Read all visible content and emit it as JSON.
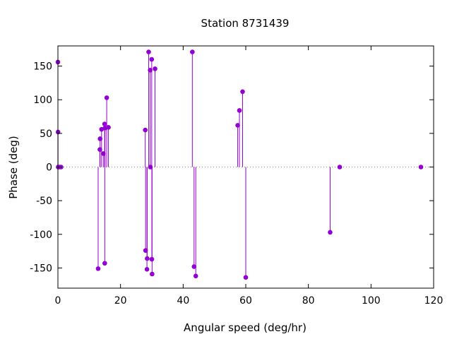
{
  "chart_data": {
    "type": "scatter",
    "style": "impulses-with-points",
    "title": "Station 8731439",
    "xlabel": "Angular speed (deg/hr)",
    "ylabel": "Phase (deg)",
    "xlim": [
      0,
      120
    ],
    "ylim": [
      -180,
      180
    ],
    "xticks": [
      0,
      20,
      40,
      60,
      80,
      100,
      120
    ],
    "yticks": [
      -150,
      -100,
      -50,
      0,
      50,
      100,
      150
    ],
    "grid": false,
    "zero_line": "dotted",
    "color": "#9400d3",
    "points": [
      {
        "x": 0.0,
        "y": 156
      },
      {
        "x": 0.04,
        "y": 52
      },
      {
        "x": 0.08,
        "y": 0
      },
      {
        "x": 0.54,
        "y": 0
      },
      {
        "x": 1.0,
        "y": 0
      },
      {
        "x": 12.85,
        "y": -151
      },
      {
        "x": 13.4,
        "y": 26
      },
      {
        "x": 13.47,
        "y": 42
      },
      {
        "x": 13.94,
        "y": 56
      },
      {
        "x": 14.5,
        "y": 20
      },
      {
        "x": 14.92,
        "y": 64
      },
      {
        "x": 14.96,
        "y": -143
      },
      {
        "x": 15.04,
        "y": 58
      },
      {
        "x": 15.59,
        "y": 103
      },
      {
        "x": 16.14,
        "y": 59
      },
      {
        "x": 27.9,
        "y": 55
      },
      {
        "x": 28.0,
        "y": -124
      },
      {
        "x": 28.44,
        "y": -152
      },
      {
        "x": 28.51,
        "y": -136
      },
      {
        "x": 28.98,
        "y": 171
      },
      {
        "x": 29.46,
        "y": 144
      },
      {
        "x": 29.53,
        "y": 0
      },
      {
        "x": 29.96,
        "y": 160
      },
      {
        "x": 30.0,
        "y": -137
      },
      {
        "x": 30.08,
        "y": -159
      },
      {
        "x": 31.02,
        "y": 146
      },
      {
        "x": 42.93,
        "y": 171
      },
      {
        "x": 43.48,
        "y": -148
      },
      {
        "x": 44.03,
        "y": -162
      },
      {
        "x": 57.42,
        "y": 62
      },
      {
        "x": 57.97,
        "y": 84
      },
      {
        "x": 58.98,
        "y": 112
      },
      {
        "x": 60.0,
        "y": -164
      },
      {
        "x": 86.95,
        "y": -97
      },
      {
        "x": 90.0,
        "y": 0
      },
      {
        "x": 115.94,
        "y": 0
      }
    ]
  }
}
